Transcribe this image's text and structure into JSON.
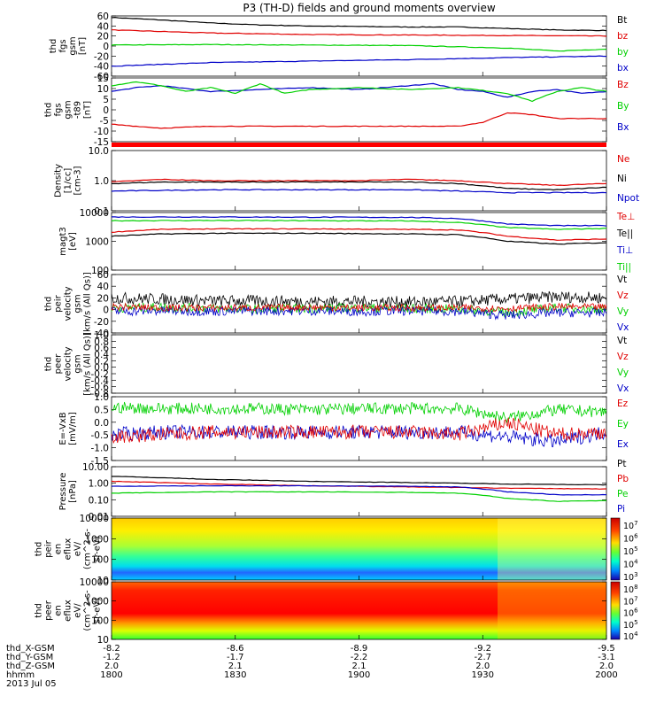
{
  "title": "P3 (TH-D) fields and ground moments overview",
  "colors": {
    "black": "#000000",
    "red": "#e00000",
    "green": "#00d000",
    "blue": "#0000c8"
  },
  "chart_data": [
    {
      "type": "line",
      "ylabel": "thd\nfgs\ngsm\n[nT]",
      "yticks": [
        "60",
        "40",
        "20",
        "0",
        "-20",
        "-40",
        "-60"
      ],
      "ylim": [
        -60,
        60
      ],
      "legend": [
        [
          "Bt",
          "black"
        ],
        [
          "bz",
          "red"
        ],
        [
          "by",
          "green"
        ],
        [
          "bx",
          "blue"
        ]
      ],
      "series": [
        {
          "name": "Bt",
          "color": "black",
          "x": [
            0,
            0.1,
            0.2,
            0.3,
            0.4,
            0.5,
            0.6,
            0.7,
            0.8,
            0.9,
            1.0
          ],
          "y": [
            57,
            52,
            46,
            42,
            40,
            39,
            38,
            38,
            35,
            32,
            31
          ]
        },
        {
          "name": "bz",
          "color": "red",
          "x": [
            0,
            0.2,
            0.4,
            0.6,
            0.8,
            1.0
          ],
          "y": [
            32,
            26,
            23,
            22,
            21,
            20
          ]
        },
        {
          "name": "by",
          "color": "green",
          "x": [
            0,
            0.2,
            0.4,
            0.6,
            0.8,
            0.9,
            1.0
          ],
          "y": [
            2,
            3,
            2,
            1,
            -4,
            -10,
            -6
          ]
        },
        {
          "name": "bx",
          "color": "blue",
          "x": [
            0,
            0.2,
            0.4,
            0.6,
            0.8,
            1.0
          ],
          "y": [
            -40,
            -33,
            -30,
            -27,
            -23,
            -20
          ]
        }
      ]
    },
    {
      "type": "line",
      "ylabel": "thd\nfgs\ngsm\n-t89\n[nT]",
      "yticks": [
        "15",
        "10",
        "5",
        "0",
        "-5",
        "-10",
        "-15"
      ],
      "ylim": [
        -17,
        16
      ],
      "legend": [
        [
          "Bz",
          "red"
        ],
        [
          "By",
          "green"
        ],
        [
          "Bx",
          "blue"
        ]
      ],
      "series": [
        {
          "name": "Bz",
          "color": "blue",
          "x": [
            0,
            0.05,
            0.1,
            0.2,
            0.3,
            0.4,
            0.5,
            0.6,
            0.65,
            0.7,
            0.75,
            0.8,
            0.85,
            0.9,
            0.95,
            1.0
          ],
          "y": [
            9,
            11,
            12,
            9,
            10,
            11,
            10,
            12,
            13,
            10,
            9,
            6,
            9,
            10,
            8,
            9
          ]
        },
        {
          "name": "By",
          "color": "green",
          "x": [
            0,
            0.05,
            0.1,
            0.15,
            0.2,
            0.25,
            0.3,
            0.35,
            0.4,
            0.5,
            0.6,
            0.7,
            0.8,
            0.85,
            0.9,
            0.95,
            1.0
          ],
          "y": [
            12,
            14,
            12,
            9,
            11,
            8,
            13,
            8,
            10,
            11,
            10,
            11,
            8,
            4,
            9,
            11,
            9
          ]
        },
        {
          "name": "Bx",
          "color": "red",
          "x": [
            0,
            0.1,
            0.2,
            0.3,
            0.4,
            0.5,
            0.6,
            0.7,
            0.75,
            0.8,
            0.85,
            0.9,
            1.0
          ],
          "y": [
            -8,
            -10,
            -9,
            -9,
            -9,
            -9,
            -9,
            -9,
            -7,
            -2,
            -3,
            -5,
            -5
          ]
        }
      ]
    },
    {
      "type": "line",
      "ylabel": "Density\n[1/cc]\n[cm-3]",
      "yticks": [
        "10.0",
        "1.0",
        "0.1"
      ],
      "ylim": [
        -1,
        1
      ],
      "log": true,
      "legend": [
        [
          "Ne",
          "red"
        ],
        [
          "Ni",
          "black"
        ],
        [
          "Npot",
          "blue"
        ]
      ],
      "series": [
        {
          "name": "Ne",
          "color": "red",
          "x": [
            0,
            0.1,
            0.2,
            0.3,
            0.4,
            0.5,
            0.6,
            0.7,
            0.8,
            0.9,
            1.0
          ],
          "y": [
            0.9,
            1.1,
            1.0,
            1.0,
            1.0,
            1.0,
            1.1,
            1.0,
            0.8,
            0.7,
            0.8
          ]
        },
        {
          "name": "Ni",
          "color": "black",
          "x": [
            0,
            0.1,
            0.2,
            0.3,
            0.4,
            0.5,
            0.6,
            0.7,
            0.8,
            0.9,
            1.0
          ],
          "y": [
            0.8,
            0.9,
            0.9,
            0.9,
            0.9,
            0.9,
            0.9,
            0.8,
            0.55,
            0.5,
            0.6
          ]
        },
        {
          "name": "Npot",
          "color": "blue",
          "x": [
            0,
            0.2,
            0.4,
            0.6,
            0.7,
            0.8,
            1.0
          ],
          "y": [
            0.45,
            0.5,
            0.5,
            0.5,
            0.45,
            0.4,
            0.4
          ]
        }
      ]
    },
    {
      "type": "line",
      "ylabel": "magt3\n[eV]",
      "yticks": [
        "10000",
        "1000",
        "100"
      ],
      "ylim": [
        2,
        4
      ],
      "log": true,
      "legend": [
        [
          "Te⊥",
          "red"
        ],
        [
          "Te||",
          "black"
        ],
        [
          "Ti⊥",
          "blue"
        ],
        [
          "Ti||",
          "green"
        ]
      ],
      "series": [
        {
          "name": "Ti⊥",
          "color": "blue",
          "x": [
            0,
            0.2,
            0.4,
            0.6,
            0.7,
            0.8,
            0.9,
            1.0
          ],
          "y": [
            7000,
            7000,
            6900,
            6800,
            6200,
            4000,
            3500,
            3500
          ]
        },
        {
          "name": "Ti||",
          "color": "green",
          "x": [
            0,
            0.2,
            0.4,
            0.6,
            0.7,
            0.8,
            0.9,
            1.0
          ],
          "y": [
            5200,
            5300,
            5200,
            5100,
            4500,
            3000,
            2600,
            2800
          ]
        },
        {
          "name": "Te⊥",
          "color": "red",
          "x": [
            0,
            0.1,
            0.2,
            0.4,
            0.6,
            0.7,
            0.8,
            0.9,
            1.0
          ],
          "y": [
            2100,
            2600,
            2700,
            2700,
            2600,
            2500,
            1500,
            1100,
            1200
          ]
        },
        {
          "name": "Te||",
          "color": "black",
          "x": [
            0,
            0.1,
            0.2,
            0.4,
            0.6,
            0.7,
            0.8,
            0.9,
            1.0
          ],
          "y": [
            1500,
            1800,
            1900,
            1900,
            1800,
            1700,
            1000,
            800,
            900
          ]
        }
      ]
    },
    {
      "type": "line",
      "ylabel": "thd\npeir\nvelocity\ngsm\n[km/s (All Qs)]",
      "yticks": [
        "60",
        "40",
        "20",
        "0",
        "-20",
        "-40"
      ],
      "ylim": [
        -40,
        60
      ],
      "legend": [
        [
          "Vt",
          "black"
        ],
        [
          "Vz",
          "red"
        ],
        [
          "Vy",
          "green"
        ],
        [
          "Vx",
          "blue"
        ]
      ],
      "series": [
        {
          "name": "Vt",
          "color": "black",
          "base": [
            20,
            18,
            15,
            15,
            14,
            14,
            13,
            14,
            18,
            22,
            20
          ],
          "noise": 10
        },
        {
          "name": "Vy",
          "color": "green",
          "base": [
            3,
            4,
            2,
            1,
            2,
            3,
            2,
            1,
            -5,
            3,
            0
          ],
          "noise": 8
        },
        {
          "name": "Vx",
          "color": "blue",
          "base": [
            -3,
            -2,
            -3,
            -2,
            -2,
            -3,
            -2,
            -3,
            -10,
            -5,
            -6
          ],
          "noise": 8
        },
        {
          "name": "Vz",
          "color": "red",
          "base": [
            5,
            3,
            3,
            3,
            4,
            3,
            3,
            3,
            2,
            5,
            4
          ],
          "noise": 6
        }
      ]
    },
    {
      "type": "line",
      "ylabel": "thd\npeer\nvelocity\ngsm\n[km/s (All Qs)]",
      "yticks": [
        "1.0",
        "0.8",
        "0.6",
        "0.4",
        "0.2",
        "0.0",
        "-0.2",
        "-0.4",
        "-0.6",
        "-0.8"
      ],
      "ylim": [
        -0.8,
        1.0
      ],
      "legend": [
        [
          "Vt",
          "black"
        ],
        [
          "Vz",
          "red"
        ],
        [
          "Vy",
          "green"
        ],
        [
          "Vx",
          "blue"
        ]
      ],
      "series": []
    },
    {
      "type": "line",
      "ylabel": "E=-VxB\n[mV/m]",
      "yticks": [
        "1.0",
        "0.5",
        "0.0",
        "-0.5",
        "-1.0",
        "-1.5"
      ],
      "ylim": [
        -1.7,
        1.0
      ],
      "legend": [
        [
          "Ez",
          "red"
        ],
        [
          "Ey",
          "green"
        ],
        [
          "Ex",
          "blue"
        ]
      ],
      "series": [
        {
          "name": "Ey",
          "color": "green",
          "base": [
            0.55,
            0.5,
            0.5,
            0.5,
            0.45,
            0.5,
            0.5,
            0.5,
            0.1,
            0.45,
            0.35
          ],
          "noise": 0.25
        },
        {
          "name": "Ex",
          "color": "blue",
          "base": [
            -0.6,
            -0.5,
            -0.5,
            -0.5,
            -0.5,
            -0.5,
            -0.5,
            -0.5,
            -0.7,
            -0.9,
            -0.5
          ],
          "noise": 0.3
        },
        {
          "name": "Ez",
          "color": "red",
          "base": [
            -0.7,
            -0.6,
            -0.5,
            -0.5,
            -0.5,
            -0.5,
            -0.5,
            -0.6,
            -0.1,
            -0.6,
            -0.5
          ],
          "noise": 0.3
        }
      ]
    },
    {
      "type": "line",
      "ylabel": "Pressure\n[nPa]",
      "yticks": [
        "10.00",
        "1.00",
        "0.10",
        "0.01"
      ],
      "ylim": [
        -2,
        1
      ],
      "log": true,
      "legend": [
        [
          "Pt",
          "black"
        ],
        [
          "Pb",
          "red"
        ],
        [
          "Pe",
          "green"
        ],
        [
          "Pi",
          "blue"
        ]
      ],
      "series": [
        {
          "name": "Pt",
          "color": "black",
          "x": [
            0,
            0.2,
            0.4,
            0.6,
            0.8,
            1.0
          ],
          "y": [
            2.6,
            1.7,
            1.3,
            1.1,
            0.9,
            0.8
          ]
        },
        {
          "name": "Pb",
          "color": "red",
          "x": [
            0,
            0.2,
            0.4,
            0.6,
            0.8,
            1.0
          ],
          "y": [
            1.3,
            0.9,
            0.7,
            0.6,
            0.5,
            0.45
          ]
        },
        {
          "name": "Pi",
          "color": "blue",
          "x": [
            0,
            0.2,
            0.4,
            0.6,
            0.7,
            0.8,
            0.9,
            1.0
          ],
          "y": [
            0.65,
            0.7,
            0.7,
            0.65,
            0.6,
            0.3,
            0.2,
            0.2
          ]
        },
        {
          "name": "Pe",
          "color": "green",
          "x": [
            0,
            0.2,
            0.4,
            0.6,
            0.7,
            0.8,
            0.9,
            1.0
          ],
          "y": [
            0.25,
            0.3,
            0.3,
            0.28,
            0.25,
            0.12,
            0.08,
            0.09
          ]
        }
      ]
    },
    {
      "type": "heatmap",
      "ylabel": "thd\npeir\nen\neflux\neV/\n(cm^2-s-\nsr-eV)",
      "yticks": [
        "10000",
        "1000",
        "100",
        "10"
      ],
      "ylim": [
        0.8,
        4.3
      ],
      "colorbar": [
        "10^7",
        "10^6",
        "10^5",
        "10^4",
        "10^3"
      ]
    },
    {
      "type": "heatmap",
      "ylabel": "thd\npeer\nen\neflux\neV/\n(cm^2-s-\nsr-eV)",
      "yticks": [
        "10000",
        "1000",
        "100",
        "10"
      ],
      "ylim": [
        0.8,
        4.3
      ],
      "colorbar": [
        "10^8",
        "10^7",
        "10^6",
        "10^5",
        "10^4"
      ]
    }
  ],
  "xaxis": {
    "rows": [
      {
        "label": "thd_X-GSM",
        "values": [
          "-8.2",
          "-8.6",
          "-8.9",
          "-9.2",
          "-9.5"
        ]
      },
      {
        "label": "thd_Y-GSM",
        "values": [
          "-1.2",
          "-1.7",
          "-2.2",
          "-2.7",
          "-3.1"
        ]
      },
      {
        "label": "thd_Z-GSM",
        "values": [
          "2.0",
          "2.1",
          "2.1",
          "2.0",
          "2.0"
        ]
      },
      {
        "label": "hhmm",
        "values": [
          "1800",
          "1830",
          "1900",
          "1930",
          "2000"
        ]
      }
    ],
    "date": "2013 Jul 05"
  }
}
